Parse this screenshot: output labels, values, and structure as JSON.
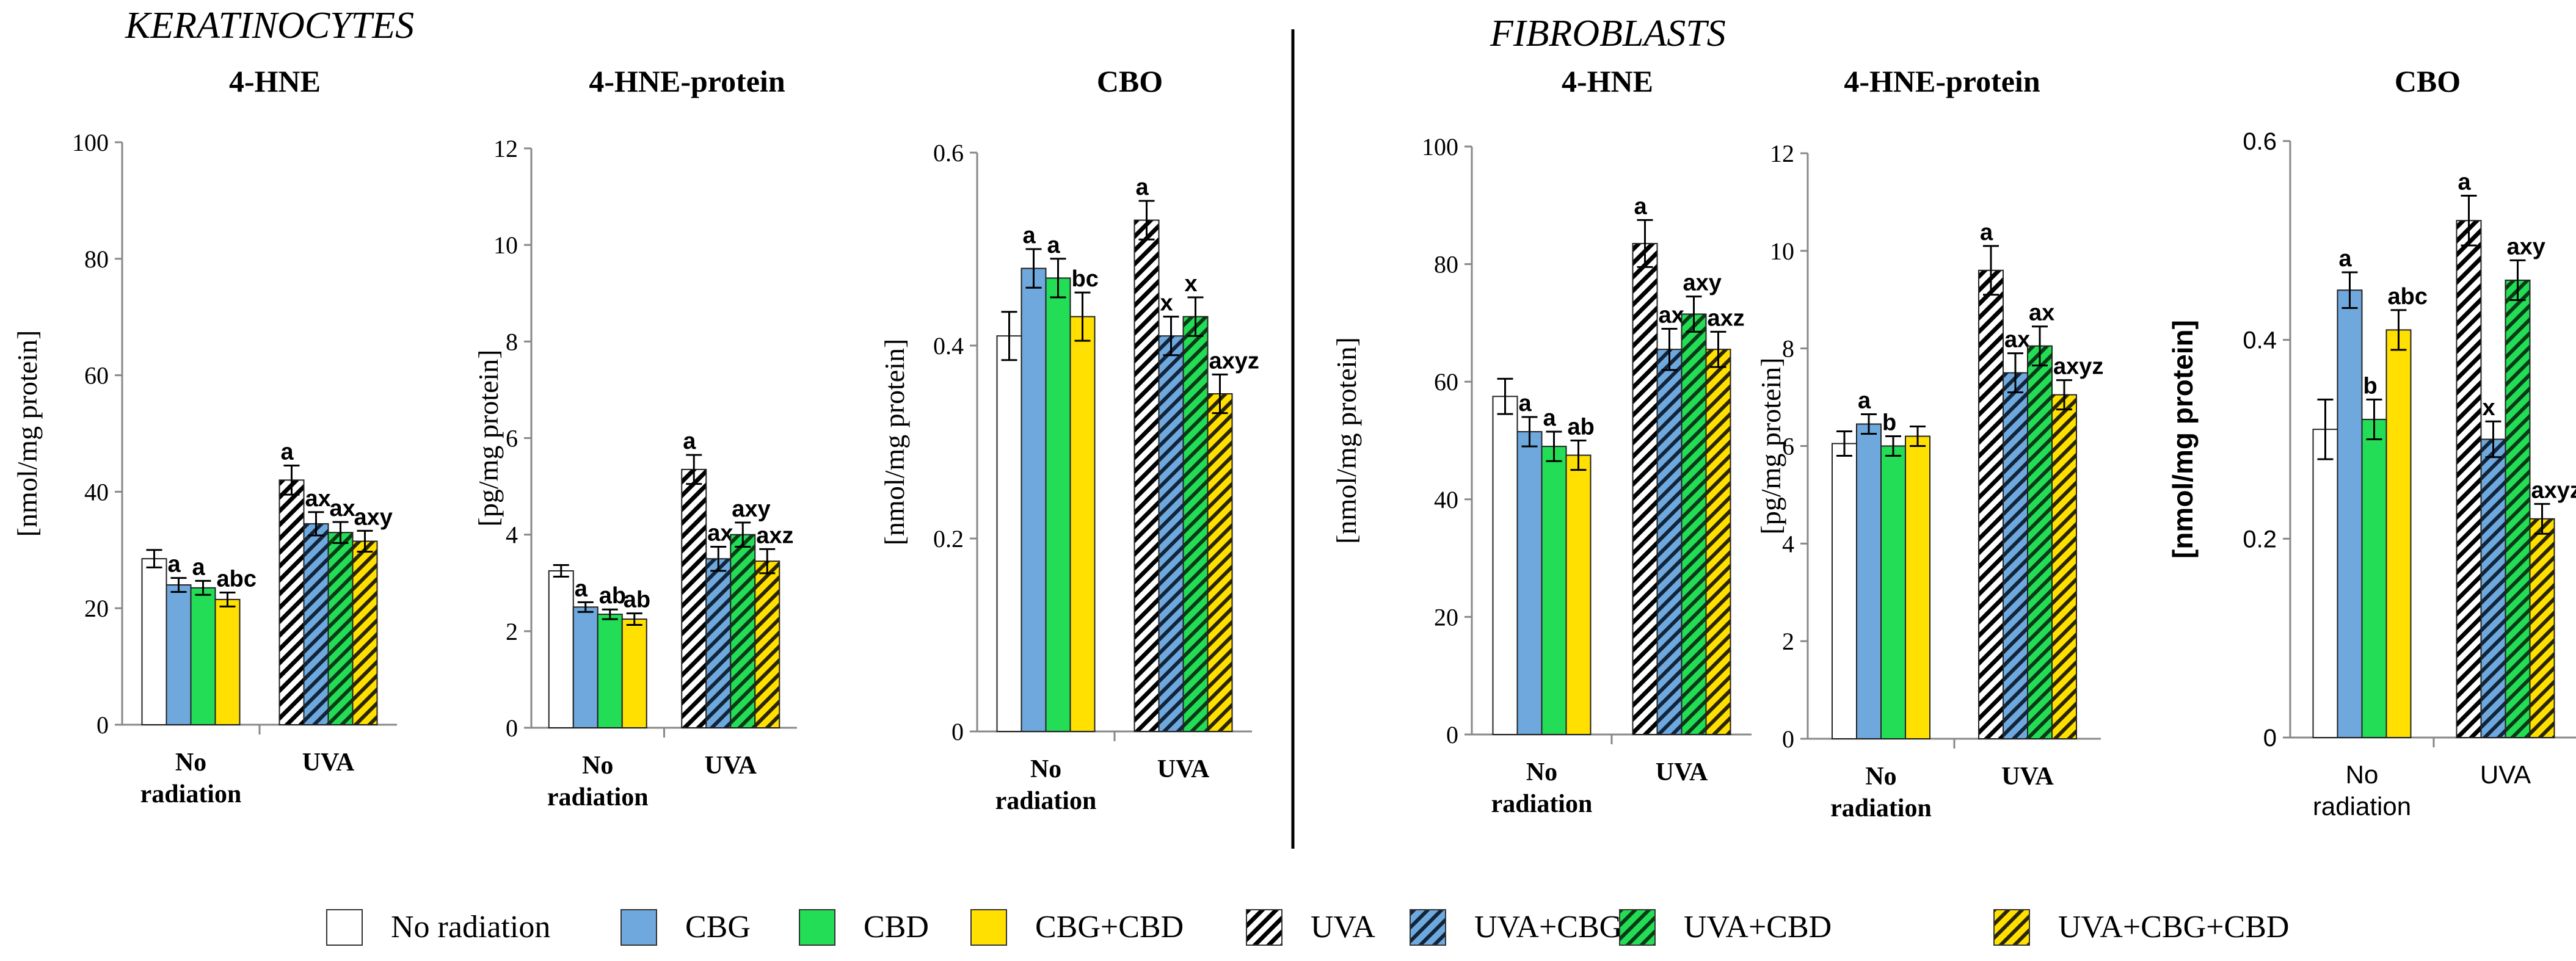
{
  "figure": {
    "sections": [
      {
        "title": "KERATINOCYTES"
      },
      {
        "title": "FIBROBLASTS"
      }
    ]
  },
  "legend": {
    "items": [
      {
        "label": "No radiation",
        "color": "#ffffff",
        "hatched": false
      },
      {
        "label": "CBG",
        "color": "#6fa8dc",
        "hatched": false
      },
      {
        "label": "CBD",
        "color": "#22dd55",
        "hatched": false
      },
      {
        "label": "CBG+CBD",
        "color": "#ffe000",
        "hatched": false
      },
      {
        "label": "UVA",
        "color": "#ffffff",
        "hatched": true
      },
      {
        "label": "UVA+CBG",
        "color": "#6fa8dc",
        "hatched": true
      },
      {
        "label": "UVA+CBD",
        "color": "#22dd55",
        "hatched": true
      },
      {
        "label": "UVA+CBG+CBD",
        "color": "#ffe000",
        "hatched": true
      }
    ]
  },
  "chart_data": [
    {
      "type": "bar",
      "section": "KERATINOCYTES",
      "title": "4-HNE",
      "ylabel": "[nmol/mg protein]",
      "ylim": [
        0,
        100
      ],
      "yticks": [
        "0",
        "20",
        "40",
        "60",
        "80",
        "100"
      ],
      "categories": [
        "No radiation",
        "UVA"
      ],
      "series": [
        {
          "name": "No radiation / UVA",
          "values": [
            28.5,
            42
          ],
          "errors": [
            1.5,
            2.5
          ],
          "labels": [
            "",
            "a"
          ]
        },
        {
          "name": "CBG",
          "values": [
            24,
            34.5
          ],
          "errors": [
            1.2,
            2
          ],
          "labels": [
            "a",
            "ax"
          ]
        },
        {
          "name": "CBD",
          "values": [
            23.5,
            33
          ],
          "errors": [
            1.2,
            1.8
          ],
          "labels": [
            "a",
            "ax"
          ]
        },
        {
          "name": "CBG+CBD",
          "values": [
            21.5,
            31.5
          ],
          "errors": [
            1.2,
            1.8
          ],
          "labels": [
            "abc",
            "axy"
          ]
        }
      ]
    },
    {
      "type": "bar",
      "section": "KERATINOCYTES",
      "title": "4-HNE-protein",
      "ylabel": "[pg/mg protein]",
      "ylim": [
        0,
        12
      ],
      "yticks": [
        "0",
        "2",
        "4",
        "6",
        "8",
        "10",
        "12"
      ],
      "categories": [
        "No radiation",
        "UVA"
      ],
      "series": [
        {
          "name": "No radiation / UVA",
          "values": [
            3.25,
            5.35
          ],
          "errors": [
            0.12,
            0.3
          ],
          "labels": [
            "",
            "a"
          ]
        },
        {
          "name": "CBG",
          "values": [
            2.5,
            3.5
          ],
          "errors": [
            0.1,
            0.25
          ],
          "labels": [
            "a",
            "ax"
          ]
        },
        {
          "name": "CBD",
          "values": [
            2.35,
            4.0
          ],
          "errors": [
            0.1,
            0.25
          ],
          "labels": [
            "ab",
            "axy"
          ]
        },
        {
          "name": "CBG+CBD",
          "values": [
            2.25,
            3.45
          ],
          "errors": [
            0.12,
            0.25
          ],
          "labels": [
            "ab",
            "axz"
          ]
        }
      ]
    },
    {
      "type": "bar",
      "section": "KERATINOCYTES",
      "title": "CBO",
      "ylabel": "[nmol/mg protein]",
      "ylim": [
        0,
        0.6
      ],
      "yticks": [
        "0",
        "0.2",
        "0.4",
        "0.6"
      ],
      "categories": [
        "No radiation",
        "UVA"
      ],
      "series": [
        {
          "name": "No radiation / UVA",
          "values": [
            0.41,
            0.53
          ],
          "errors": [
            0.025,
            0.02
          ],
          "labels": [
            "",
            "a"
          ]
        },
        {
          "name": "CBG",
          "values": [
            0.48,
            0.41
          ],
          "errors": [
            0.02,
            0.02
          ],
          "labels": [
            "a",
            "x"
          ]
        },
        {
          "name": "CBD",
          "values": [
            0.47,
            0.43
          ],
          "errors": [
            0.02,
            0.02
          ],
          "labels": [
            "a",
            "x"
          ]
        },
        {
          "name": "CBG+CBD",
          "values": [
            0.43,
            0.35
          ],
          "errors": [
            0.025,
            0.02
          ],
          "labels": [
            "bc",
            "axyz"
          ]
        }
      ]
    },
    {
      "type": "bar",
      "section": "FIBROBLASTS",
      "title": "4-HNE",
      "ylabel": "[nmol/mg protein]",
      "ylim": [
        0,
        100
      ],
      "yticks": [
        "0",
        "20",
        "40",
        "60",
        "80",
        "100"
      ],
      "categories": [
        "No radiation",
        "UVA"
      ],
      "series": [
        {
          "name": "No radiation / UVA",
          "values": [
            57.5,
            83.5
          ],
          "errors": [
            3,
            4
          ],
          "labels": [
            "",
            "a"
          ]
        },
        {
          "name": "CBG",
          "values": [
            51.5,
            65.5
          ],
          "errors": [
            2.5,
            3.5
          ],
          "labels": [
            "a",
            "ax"
          ]
        },
        {
          "name": "CBD",
          "values": [
            49,
            71.5
          ],
          "errors": [
            2.5,
            3
          ],
          "labels": [
            "a",
            "axy"
          ]
        },
        {
          "name": "CBG+CBD",
          "values": [
            47.5,
            65.5
          ],
          "errors": [
            2.5,
            3
          ],
          "labels": [
            "ab",
            "axz"
          ]
        }
      ]
    },
    {
      "type": "bar",
      "section": "FIBROBLASTS",
      "title": "4-HNE-protein",
      "ylabel": "[pg/mg protein]",
      "ylim": [
        0,
        12
      ],
      "yticks": [
        "0",
        "2",
        "4",
        "6",
        "8",
        "10",
        "12"
      ],
      "categories": [
        "No radiation",
        "UVA"
      ],
      "series": [
        {
          "name": "No radiation / UVA",
          "values": [
            6.05,
            9.6
          ],
          "errors": [
            0.25,
            0.5
          ],
          "labels": [
            "",
            "a"
          ]
        },
        {
          "name": "CBG",
          "values": [
            6.45,
            7.5
          ],
          "errors": [
            0.2,
            0.4
          ],
          "labels": [
            "a",
            "ax"
          ]
        },
        {
          "name": "CBD",
          "values": [
            6.0,
            8.05
          ],
          "errors": [
            0.2,
            0.4
          ],
          "labels": [
            "b",
            "ax"
          ]
        },
        {
          "name": "CBG+CBD",
          "values": [
            6.2,
            7.05
          ],
          "errors": [
            0.2,
            0.3
          ],
          "labels": [
            "",
            "axyz"
          ]
        }
      ]
    },
    {
      "type": "bar",
      "section": "FIBROBLASTS",
      "title": "CBO",
      "ylabel": "[nmol/mg protein]",
      "ylim": [
        0,
        0.6
      ],
      "yticks": [
        "0",
        "0.2",
        "0.4",
        "0.6"
      ],
      "categories": [
        "No radiation",
        "UVA"
      ],
      "series": [
        {
          "name": "No radiation / UVA",
          "values": [
            0.31,
            0.52
          ],
          "errors": [
            0.03,
            0.025
          ],
          "labels": [
            "",
            "a"
          ]
        },
        {
          "name": "CBG",
          "values": [
            0.45,
            0.3
          ],
          "errors": [
            0.018,
            0.018
          ],
          "labels": [
            "a",
            "x"
          ]
        },
        {
          "name": "CBD",
          "values": [
            0.32,
            0.46
          ],
          "errors": [
            0.02,
            0.02
          ],
          "labels": [
            "b",
            "axy"
          ]
        },
        {
          "name": "CBG+CBD",
          "values": [
            0.41,
            0.22
          ],
          "errors": [
            0.02,
            0.015
          ],
          "labels": [
            "abc",
            "axyz"
          ]
        }
      ]
    }
  ]
}
